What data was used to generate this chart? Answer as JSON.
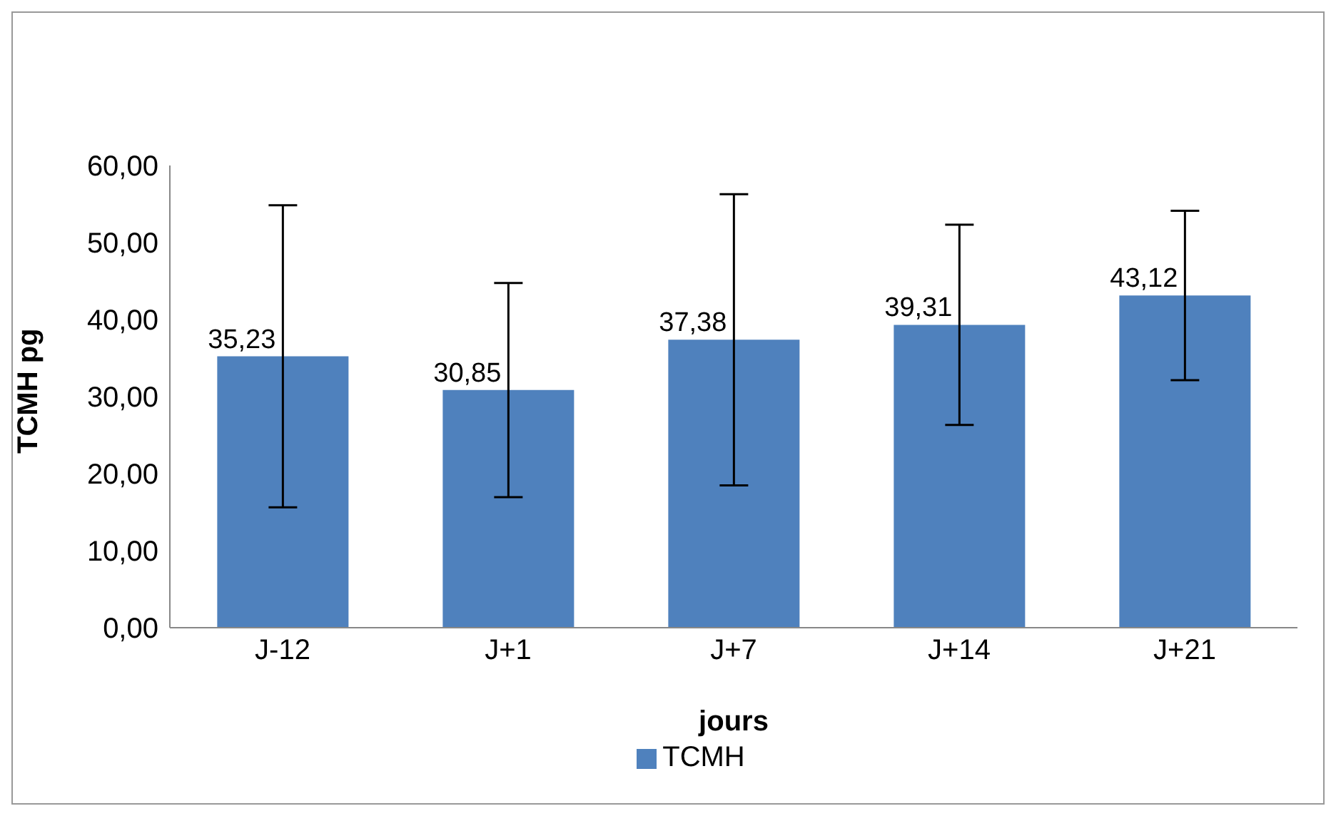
{
  "chart_data": {
    "type": "bar",
    "xlabel": "jours",
    "ylabel": "TCMH pg",
    "categories": [
      "J-12",
      "J+1",
      "J+7",
      "J+14",
      "J+21"
    ],
    "series": [
      {
        "name": "TCMH",
        "color": "#4f81bd",
        "values": [
          35.23,
          30.85,
          37.38,
          39.31,
          43.12
        ],
        "errors": [
          19.6,
          13.9,
          18.9,
          13,
          11
        ],
        "value_labels": [
          "35,23",
          "30,85",
          "37,38",
          "39,31",
          "43,12"
        ]
      }
    ],
    "ylim": [
      0,
      60
    ],
    "yticks": [
      {
        "value": 0,
        "label": "0,00"
      },
      {
        "value": 10,
        "label": "10,00"
      },
      {
        "value": 20,
        "label": "20,00"
      },
      {
        "value": 30,
        "label": "30,00"
      },
      {
        "value": 40,
        "label": "40,00"
      },
      {
        "value": 50,
        "label": "50,00"
      },
      {
        "value": 60,
        "label": "60,00"
      }
    ],
    "grid": false,
    "legend": "bottom"
  }
}
